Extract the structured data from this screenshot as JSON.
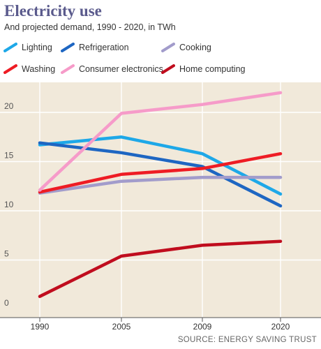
{
  "header": {
    "title": "Electricity use",
    "subtitle": "And projected demand, 1990 - 2020, in TWh"
  },
  "source": "SOURCE: ENERGY SAVING TRUST",
  "colors": {
    "background": "#f1e9da",
    "gridline": "#ffffff",
    "axis": "#555555"
  },
  "chart_data": {
    "type": "line",
    "title": "Electricity use",
    "subtitle": "And projected demand, 1990 - 2020, in TWh",
    "xlabel": "",
    "ylabel": "",
    "categories": [
      "1990",
      "2005",
      "2009",
      "2020"
    ],
    "y_ticks": [
      "0",
      "5",
      "10",
      "15",
      "20"
    ],
    "ylim": [
      -1.5,
      25
    ],
    "grid": true,
    "legend_position": "top",
    "series": [
      {
        "name": "Lighting",
        "color": "#1ea8e8",
        "values": [
          16.7,
          17.5,
          15.8,
          11.7
        ]
      },
      {
        "name": "Refrigeration",
        "color": "#1e66c2",
        "values": [
          16.9,
          15.9,
          14.5,
          10.5
        ]
      },
      {
        "name": "Cooking",
        "color": "#a29ccb",
        "values": [
          11.8,
          13.0,
          13.4,
          13.4
        ]
      },
      {
        "name": "Washing",
        "color": "#ee1c24",
        "values": [
          11.9,
          13.7,
          14.3,
          15.8
        ]
      },
      {
        "name": "Consumer electronics",
        "color": "#f69bc9",
        "values": [
          12.1,
          19.9,
          20.8,
          22.0
        ]
      },
      {
        "name": "Home computing",
        "color": "#c00d1e",
        "values": [
          1.3,
          5.4,
          6.5,
          6.9
        ]
      }
    ]
  }
}
